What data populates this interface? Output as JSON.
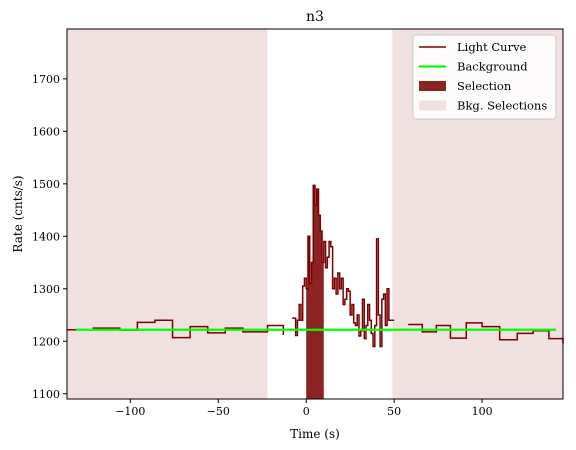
{
  "chart_data": {
    "type": "line",
    "title": "n3",
    "xlabel": "Time (s)",
    "ylabel": "Rate (cnts/s)",
    "xlim": [
      -136,
      146
    ],
    "ylim": [
      1090,
      1795
    ],
    "xticks": [
      -100,
      -50,
      0,
      50,
      100
    ],
    "yticks": [
      1100,
      1200,
      1300,
      1400,
      1500,
      1600,
      1700
    ],
    "grid": false,
    "legend_position": "top-right",
    "legend": [
      {
        "label": "Light Curve",
        "kind": "line",
        "color": "#7a0000"
      },
      {
        "label": "Background",
        "kind": "line",
        "color": "#00ff00"
      },
      {
        "label": "Selection",
        "kind": "patch",
        "color": "#8b2323"
      },
      {
        "label": "Bkg. Selections",
        "kind": "patch",
        "color": "#f0e0e0"
      }
    ],
    "background_level": 1222,
    "background_x": [
      -131,
      142
    ],
    "selection": [
      0,
      10
    ],
    "bkg_selections": [
      [
        -136,
        -22
      ],
      [
        49,
        146
      ]
    ],
    "light_curve_coarse": {
      "edges": [
        -136,
        -121,
        -106,
        -96,
        -86,
        -76,
        -66,
        -56,
        -46,
        -36,
        -22,
        -13
      ],
      "values": [
        1222,
        1225,
        1221,
        1236,
        1240,
        1207,
        1228,
        1216,
        1225,
        1218,
        1230,
        1212
      ]
    },
    "light_curve_fine": {
      "x0": -8,
      "dt": 1,
      "values": [
        1244,
        1244,
        1211,
        1240,
        1270,
        1240,
        1305,
        1320,
        1300,
        1400,
        1310,
        1350,
        1497,
        1460,
        1490,
        1440,
        1410,
        1350,
        1390,
        1340,
        1360,
        1390,
        1380,
        1300,
        1320,
        1290,
        1330,
        1300,
        1320,
        1270,
        1280,
        1300,
        1295,
        1250,
        1270,
        1235,
        1230,
        1250,
        1210,
        1220,
        1280,
        1205,
        1230,
        1270,
        1240,
        1215,
        1190,
        1230,
        1395,
        1250,
        1190,
        1280,
        1290,
        1230,
        1300,
        1240,
        1240,
        1240
      ]
    },
    "light_curve_tail": {
      "edges": [
        58,
        66,
        74,
        82,
        91,
        100,
        110,
        120,
        129,
        138,
        146
      ],
      "values": [
        1232,
        1218,
        1230,
        1206,
        1235,
        1228,
        1203,
        1215,
        1220,
        1205,
        1196
      ]
    },
    "colors": {
      "light_curve": "#7a0000",
      "background": "#00ff00",
      "selection": "#8b2323",
      "bkg_selection": "#f0e0e0"
    }
  }
}
